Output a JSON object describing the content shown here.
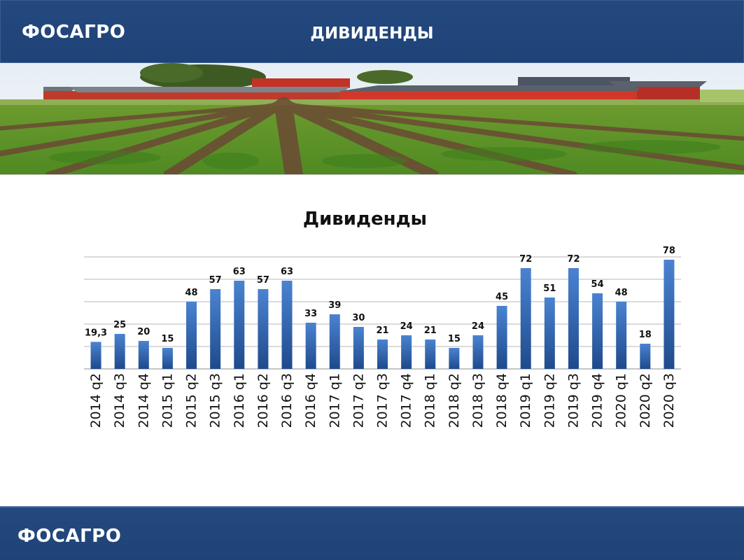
{
  "header": {
    "logo": "ФОСАГРО",
    "title": "ДИВИДЕНДЫ"
  },
  "footer": {
    "logo": "ФОСАГРО"
  },
  "colors": {
    "header_bg": "#1f4377",
    "bar": "#3b74c4",
    "bar_dark": "#1c4587"
  },
  "chart_data": {
    "type": "bar",
    "title": "Дивиденды",
    "xlabel": "",
    "ylabel": "",
    "ylim": [
      0,
      80
    ],
    "grid": true,
    "legend": "none",
    "categories": [
      "2014 q2",
      "2014 q3",
      "2014 q4",
      "2015 q1",
      "2015 q2",
      "2015 q3",
      "2016 q1",
      "2016 q2",
      "2016 q3",
      "2016 q4",
      "2017 q1",
      "2017 q2",
      "2017 q3",
      "2017 q4",
      "2018 q1",
      "2018 q2",
      "2018 q3",
      "2018 q4",
      "2019 q1",
      "2019 q2",
      "2019 q3",
      "2019 q4",
      "2020 q1",
      "2020 q2",
      "2020 q3"
    ],
    "values": [
      19.3,
      25,
      20,
      15,
      48,
      57,
      63,
      57,
      63,
      33,
      39,
      30,
      21,
      24,
      21,
      15,
      24,
      45,
      72,
      51,
      72,
      54,
      48,
      18,
      78
    ],
    "data_labels": [
      "19,3",
      "25",
      "20",
      "15",
      "48",
      "57",
      "63",
      "57",
      "63",
      "33",
      "39",
      "30",
      "21",
      "24",
      "21",
      "15",
      "24",
      "45",
      "72",
      "51",
      "72",
      "54",
      "48",
      "18",
      "78"
    ]
  }
}
